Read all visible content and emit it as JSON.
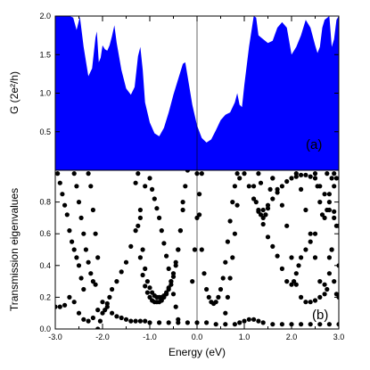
{
  "chart_data": [
    {
      "panel": "a",
      "type": "area",
      "annotation": "(a)",
      "ylabel": "G (2e²/h)",
      "xlim": [
        -3.0,
        3.0
      ],
      "ylim": [
        0,
        2.0
      ],
      "yticks": [
        "0.5",
        "1.0",
        "1.5",
        "2.0"
      ],
      "ytick_values": [
        0.5,
        1.0,
        1.5,
        2.0
      ],
      "fill_color": "#0000ff",
      "x": [
        -3.0,
        -2.85,
        -2.7,
        -2.62,
        -2.55,
        -2.48,
        -2.4,
        -2.3,
        -2.22,
        -2.15,
        -2.12,
        -2.08,
        -2.04,
        -2.0,
        -1.95,
        -1.9,
        -1.85,
        -1.8,
        -1.75,
        -1.7,
        -1.6,
        -1.5,
        -1.4,
        -1.32,
        -1.25,
        -1.2,
        -1.15,
        -1.1,
        -1.0,
        -0.9,
        -0.8,
        -0.7,
        -0.6,
        -0.5,
        -0.4,
        -0.3,
        -0.25,
        -0.2,
        -0.1,
        0.0,
        0.1,
        0.2,
        0.3,
        0.4,
        0.5,
        0.6,
        0.7,
        0.8,
        0.85,
        0.9,
        0.95,
        1.0,
        1.1,
        1.2,
        1.25,
        1.3,
        1.4,
        1.5,
        1.6,
        1.7,
        1.8,
        1.9,
        2.0,
        2.1,
        2.2,
        2.3,
        2.4,
        2.5,
        2.55,
        2.6,
        2.65,
        2.7,
        2.8,
        2.85,
        2.9,
        2.95,
        3.0
      ],
      "y": [
        2.0,
        2.0,
        2.0,
        1.98,
        1.82,
        1.99,
        1.6,
        1.22,
        1.32,
        1.72,
        1.8,
        1.4,
        1.46,
        1.62,
        1.57,
        1.55,
        1.62,
        1.74,
        1.88,
        1.65,
        1.3,
        1.06,
        0.98,
        1.08,
        1.48,
        1.6,
        1.3,
        0.88,
        0.62,
        0.48,
        0.44,
        0.55,
        0.75,
        0.98,
        1.18,
        1.38,
        1.4,
        1.22,
        0.85,
        0.58,
        0.42,
        0.36,
        0.4,
        0.52,
        0.65,
        0.72,
        0.75,
        0.88,
        1.0,
        0.85,
        0.82,
        1.1,
        1.6,
        2.0,
        1.98,
        1.75,
        1.7,
        1.65,
        1.68,
        1.85,
        1.92,
        1.85,
        1.5,
        1.6,
        1.75,
        1.95,
        1.85,
        1.62,
        1.52,
        1.6,
        1.85,
        1.95,
        2.0,
        1.6,
        1.7,
        1.95,
        2.0
      ]
    },
    {
      "panel": "b",
      "type": "scatter",
      "annotation": "(b)",
      "xlabel": "Energy (eV)",
      "ylabel": "Transmission eigenvalues",
      "xlim": [
        -3.0,
        3.0
      ],
      "ylim": [
        0,
        1.0
      ],
      "xticks": [
        "-3.0",
        "-2.0",
        "-1.0",
        "0.0",
        "1.0",
        "2.0",
        "3.0"
      ],
      "xtick_values": [
        -3.0,
        -2.0,
        -1.0,
        0.0,
        1.0,
        2.0,
        3.0
      ],
      "yticks": [
        "0.0",
        "0.2",
        "0.4",
        "0.6",
        "0.8"
      ],
      "ytick_values": [
        0.0,
        0.2,
        0.4,
        0.6,
        0.8
      ],
      "marker_color": "#000000",
      "series": [
        {
          "x": [
            -3.0,
            -2.9,
            -2.8,
            -2.7,
            -2.6,
            -2.5,
            -2.4,
            -2.3,
            -2.2,
            -2.1,
            -2.0,
            -1.9,
            -1.8,
            -1.7,
            -1.6,
            -1.5,
            -1.4,
            -1.3,
            -1.2,
            -1.1,
            -1.0,
            -0.8,
            -0.6,
            -0.4,
            -0.2,
            0.0,
            0.2,
            0.4,
            0.6,
            0.8,
            0.9,
            1.0,
            1.1,
            1.2,
            1.3,
            1.4,
            1.6,
            1.8,
            2.0,
            2.2,
            2.4,
            2.6,
            2.8,
            3.0
          ],
          "y": [
            0.14,
            0.14,
            0.15,
            0.2,
            0.17,
            0.1,
            0.06,
            0.05,
            0.07,
            0.12,
            0.17,
            0.14,
            0.1,
            0.08,
            0.07,
            0.06,
            0.05,
            0.05,
            0.05,
            0.05,
            0.04,
            0.04,
            0.04,
            0.04,
            0.04,
            0.04,
            0.04,
            0.03,
            0.03,
            0.03,
            0.04,
            0.05,
            0.06,
            0.06,
            0.05,
            0.04,
            0.03,
            0.03,
            0.03,
            0.03,
            0.03,
            0.03,
            0.03,
            0.03
          ]
        },
        {
          "x": [
            -2.1,
            -2.05,
            -2.0,
            -1.95,
            -1.9,
            -1.85,
            -1.8,
            -1.7,
            -1.6,
            -1.5,
            -1.4,
            -1.3,
            -1.2,
            -1.1
          ],
          "y": [
            0.0,
            0.05,
            0.1,
            0.12,
            0.16,
            0.2,
            0.25,
            0.3,
            0.36,
            0.42,
            0.52,
            0.62,
            0.75,
            0.9
          ]
        },
        {
          "x": [
            -1.25,
            -1.2,
            -1.15,
            -1.1,
            -1.05,
            -1.0,
            -0.95,
            -0.9,
            -0.85,
            -0.8,
            -0.75,
            -0.7,
            -0.65,
            -0.6,
            -0.55,
            -0.5,
            -0.45,
            -0.4,
            -0.35,
            -0.3,
            -0.25,
            -0.2
          ],
          "y": [
            0.98,
            0.7,
            0.5,
            0.38,
            0.3,
            0.26,
            0.23,
            0.21,
            0.2,
            0.2,
            0.2,
            0.21,
            0.23,
            0.26,
            0.3,
            0.35,
            0.42,
            0.5,
            0.62,
            0.75,
            0.9,
            1.0
          ]
        },
        {
          "x": [
            -1.3,
            -1.25,
            -1.2,
            -1.15,
            -1.1,
            -1.05,
            -1.0,
            -0.95,
            -0.9,
            -0.85,
            -0.8,
            -0.75,
            -0.7,
            -0.65,
            -0.6,
            -0.55,
            -0.5,
            -0.45,
            -0.4,
            -0.35,
            -0.3
          ],
          "y": [
            0.92,
            0.65,
            0.45,
            0.34,
            0.27,
            0.23,
            0.2,
            0.18,
            0.17,
            0.17,
            0.17,
            0.18,
            0.2,
            0.22,
            0.25,
            0.28,
            0.33,
            0.4,
            0.5,
            0.62,
            0.8
          ]
        },
        {
          "x": [
            0.0,
            0.05,
            0.1,
            0.15,
            0.2,
            0.25,
            0.3,
            0.35,
            0.4,
            0.45,
            0.5,
            0.55,
            0.6,
            0.65,
            0.7,
            0.75,
            0.8,
            0.85
          ],
          "y": [
            0.98,
            0.72,
            0.5,
            0.35,
            0.25,
            0.2,
            0.17,
            0.16,
            0.17,
            0.2,
            0.25,
            0.32,
            0.42,
            0.55,
            0.68,
            0.8,
            0.9,
            0.98
          ]
        },
        {
          "x": [
            0.6,
            0.65,
            0.7,
            0.75,
            0.8,
            0.85,
            0.9
          ],
          "y": [
            0.1,
            0.2,
            0.32,
            0.45,
            0.6,
            0.78,
            0.95
          ]
        },
        {
          "x": [
            -2.95,
            -2.9,
            -2.85,
            -2.8,
            -2.75,
            -2.7,
            -2.65,
            -2.6,
            -2.55,
            -2.5,
            -2.45,
            -2.4
          ],
          "y": [
            0.98,
            0.92,
            0.85,
            0.78,
            0.72,
            0.62,
            0.55,
            0.5,
            0.45,
            0.4,
            0.32,
            0.25
          ]
        },
        {
          "x": [
            -2.6,
            -2.55,
            -2.5,
            -2.45,
            -2.4,
            -2.35,
            -2.3,
            -2.25,
            -2.2,
            -2.15
          ],
          "y": [
            0.98,
            0.9,
            0.8,
            0.7,
            0.6,
            0.5,
            0.42,
            0.35,
            0.3,
            0.28
          ]
        },
        {
          "x": [
            -2.3,
            -2.25,
            -2.2,
            -2.15,
            -2.1
          ],
          "y": [
            0.98,
            0.9,
            0.75,
            0.6,
            0.45
          ]
        },
        {
          "x": [
            -1.0,
            -0.95,
            -0.9,
            -0.85,
            -0.8,
            -0.75,
            -0.7,
            -0.65,
            -0.6,
            -0.55,
            -0.5,
            -0.45,
            -0.4
          ],
          "y": [
            0.95,
            0.88,
            0.82,
            0.76,
            0.7,
            0.62,
            0.54,
            0.46,
            0.38,
            0.3,
            0.22,
            0.14,
            0.06
          ]
        },
        {
          "x": [
            -0.1,
            -0.05,
            0.0,
            0.05,
            0.1
          ],
          "y": [
            0.3,
            0.5,
            0.7,
            0.85,
            0.98
          ]
        },
        {
          "x": [
            1.2,
            1.25,
            1.3,
            1.35,
            1.4,
            1.45,
            1.5,
            1.6,
            1.7,
            1.8,
            1.9,
            2.0,
            2.1,
            2.2,
            2.3,
            2.4,
            2.5,
            2.6,
            2.7,
            2.8,
            2.9,
            3.0
          ],
          "y": [
            0.9,
            0.8,
            0.75,
            0.72,
            0.7,
            0.72,
            0.76,
            0.82,
            0.86,
            0.9,
            0.93,
            0.95,
            0.96,
            0.97,
            0.97,
            0.96,
            0.95,
            0.9,
            0.85,
            0.8,
            0.74,
            0.65
          ]
        },
        {
          "x": [
            1.3,
            1.35,
            1.4,
            1.45,
            1.5,
            1.55,
            1.6
          ],
          "y": [
            0.98,
            0.92,
            0.75,
            0.72,
            0.78,
            0.88,
            0.95
          ]
        },
        {
          "x": [
            1.0,
            1.1,
            1.2,
            1.3,
            1.4,
            1.5,
            1.6,
            1.7,
            1.8,
            1.9,
            2.0,
            2.05,
            2.1,
            2.15,
            2.2,
            2.3,
            2.4,
            2.5
          ],
          "y": [
            0.98,
            0.9,
            0.82,
            0.74,
            0.66,
            0.58,
            0.52,
            0.46,
            0.38,
            0.3,
            0.28,
            0.3,
            0.35,
            0.4,
            0.45,
            0.5,
            0.55,
            0.6
          ]
        },
        {
          "x": [
            1.6,
            1.7,
            1.8,
            1.9,
            2.0,
            2.1,
            2.2,
            2.3,
            2.4,
            2.5,
            2.6,
            2.7,
            2.8,
            2.9
          ],
          "y": [
            0.95,
            0.88,
            0.78,
            0.65,
            0.45,
            0.28,
            0.2,
            0.17,
            0.17,
            0.18,
            0.2,
            0.28,
            0.45,
            0.7
          ]
        },
        {
          "x": [
            2.1,
            2.2,
            2.3,
            2.4,
            2.5,
            2.6,
            2.7,
            2.75,
            2.8,
            2.85
          ],
          "y": [
            0.98,
            0.88,
            0.75,
            0.6,
            0.45,
            0.3,
            0.22,
            0.25,
            0.35,
            0.5
          ]
        },
        {
          "x": [
            2.5,
            2.55,
            2.6,
            2.65,
            2.7,
            2.75,
            2.8,
            2.85,
            2.9,
            2.95
          ],
          "y": [
            0.98,
            0.9,
            0.8,
            0.72,
            0.7,
            0.75,
            0.85,
            0.95,
            0.98,
            0.95
          ]
        },
        {
          "x": [
            2.75,
            2.8,
            2.85,
            2.9,
            2.95,
            3.0
          ],
          "y": [
            0.98,
            0.75,
            0.5,
            0.3,
            0.22,
            0.2
          ]
        },
        {
          "x": [
            2.9,
            2.95,
            3.0
          ],
          "y": [
            0.9,
            0.65,
            0.4
          ]
        }
      ]
    }
  ]
}
